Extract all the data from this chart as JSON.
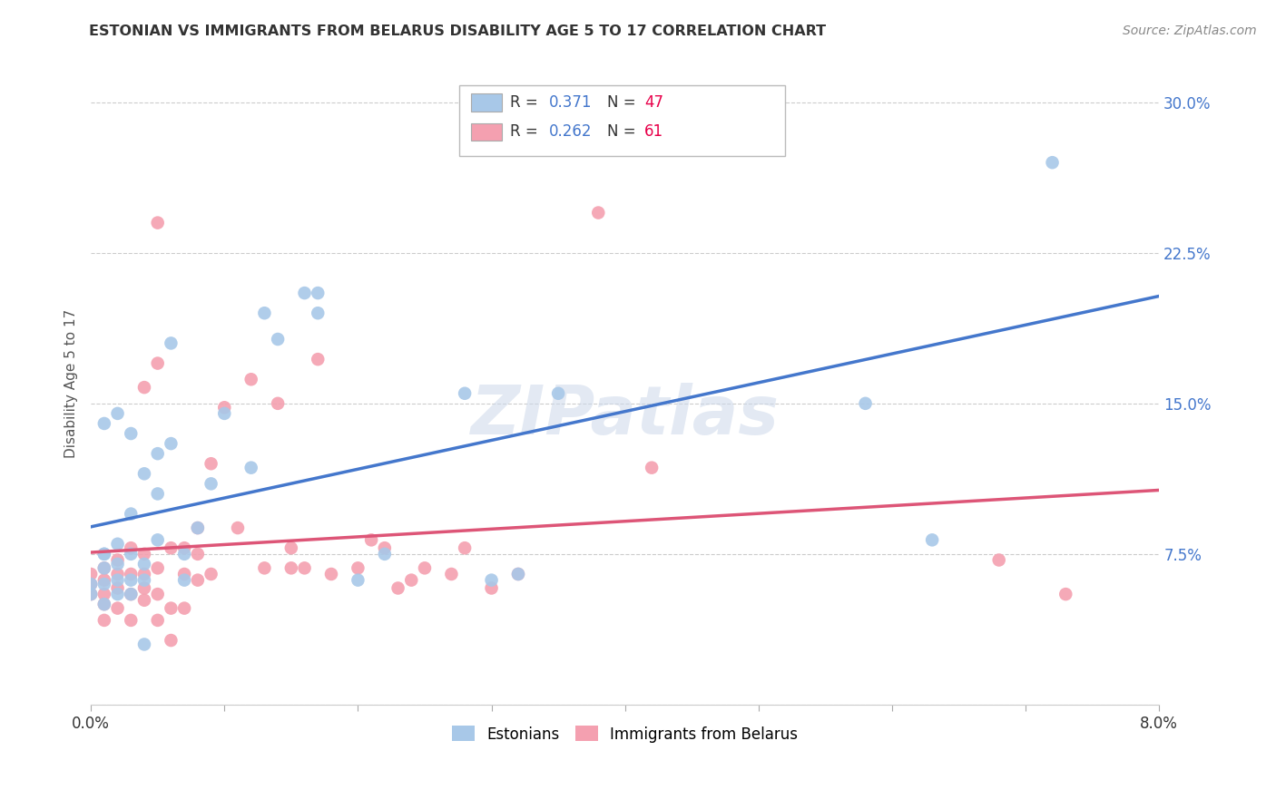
{
  "title": "ESTONIAN VS IMMIGRANTS FROM BELARUS DISABILITY AGE 5 TO 17 CORRELATION CHART",
  "source": "Source: ZipAtlas.com",
  "ylabel": "Disability Age 5 to 17",
  "xlim": [
    0.0,
    0.08
  ],
  "ylim": [
    0.0,
    0.32
  ],
  "ytick_positions": [
    0.0,
    0.075,
    0.15,
    0.225,
    0.3
  ],
  "yticklabels": [
    "",
    "7.5%",
    "15.0%",
    "22.5%",
    "30.0%"
  ],
  "blue_color": "#a8c8e8",
  "pink_color": "#f4a0b0",
  "blue_line_color": "#4477cc",
  "pink_line_color": "#dd5577",
  "background_color": "#ffffff",
  "grid_color": "#cccccc",
  "watermark_text": "ZIPatlas",
  "blue_x": [
    0.0,
    0.0,
    0.001,
    0.001,
    0.001,
    0.001,
    0.001,
    0.002,
    0.002,
    0.002,
    0.002,
    0.003,
    0.003,
    0.003,
    0.003,
    0.004,
    0.004,
    0.004,
    0.004,
    0.005,
    0.005,
    0.005,
    0.006,
    0.006,
    0.007,
    0.007,
    0.008,
    0.009,
    0.01,
    0.012,
    0.013,
    0.014,
    0.016,
    0.017,
    0.017,
    0.02,
    0.022,
    0.028,
    0.03,
    0.032,
    0.035,
    0.058,
    0.063,
    0.072,
    0.001,
    0.002,
    0.003
  ],
  "blue_y": [
    0.055,
    0.06,
    0.05,
    0.06,
    0.068,
    0.075,
    0.075,
    0.055,
    0.062,
    0.07,
    0.08,
    0.055,
    0.062,
    0.075,
    0.095,
    0.03,
    0.062,
    0.07,
    0.115,
    0.082,
    0.105,
    0.125,
    0.13,
    0.18,
    0.062,
    0.075,
    0.088,
    0.11,
    0.145,
    0.118,
    0.195,
    0.182,
    0.205,
    0.195,
    0.205,
    0.062,
    0.075,
    0.155,
    0.062,
    0.065,
    0.155,
    0.15,
    0.082,
    0.27,
    0.14,
    0.145,
    0.135
  ],
  "pink_x": [
    0.0,
    0.0,
    0.0,
    0.001,
    0.001,
    0.001,
    0.001,
    0.001,
    0.002,
    0.002,
    0.002,
    0.002,
    0.003,
    0.003,
    0.003,
    0.003,
    0.004,
    0.004,
    0.004,
    0.004,
    0.005,
    0.005,
    0.005,
    0.005,
    0.006,
    0.006,
    0.006,
    0.007,
    0.007,
    0.007,
    0.008,
    0.008,
    0.008,
    0.009,
    0.009,
    0.01,
    0.011,
    0.012,
    0.013,
    0.014,
    0.015,
    0.015,
    0.016,
    0.017,
    0.018,
    0.02,
    0.021,
    0.022,
    0.023,
    0.024,
    0.025,
    0.027,
    0.028,
    0.03,
    0.032,
    0.038,
    0.042,
    0.068,
    0.073,
    0.004,
    0.005
  ],
  "pink_y": [
    0.055,
    0.06,
    0.065,
    0.042,
    0.05,
    0.055,
    0.062,
    0.068,
    0.048,
    0.058,
    0.065,
    0.072,
    0.042,
    0.055,
    0.065,
    0.078,
    0.052,
    0.058,
    0.065,
    0.075,
    0.042,
    0.055,
    0.068,
    0.17,
    0.032,
    0.048,
    0.078,
    0.048,
    0.065,
    0.078,
    0.062,
    0.075,
    0.088,
    0.065,
    0.12,
    0.148,
    0.088,
    0.162,
    0.068,
    0.15,
    0.068,
    0.078,
    0.068,
    0.172,
    0.065,
    0.068,
    0.082,
    0.078,
    0.058,
    0.062,
    0.068,
    0.065,
    0.078,
    0.058,
    0.065,
    0.245,
    0.118,
    0.072,
    0.055,
    0.158,
    0.24
  ]
}
